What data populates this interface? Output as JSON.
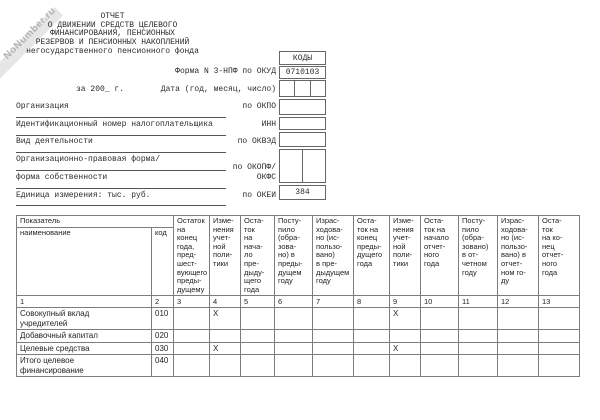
{
  "watermark": {
    "text": "NoNumber.ru"
  },
  "title": {
    "lines": [
      "ОТЧЕТ",
      "О ДВИЖЕНИИ СРЕДСТВ ЦЕЛЕВОГО",
      "ФИНАНСИРОВАНИЯ, ПЕНСИОННЫХ",
      "РЕЗЕРВОВ И ПЕНСИОННЫХ НАКОПЛЕНИЙ",
      "негосударственного пенсионного фонда"
    ]
  },
  "meta": {
    "form_label": "Форма N 3-НПФ по ОКУД",
    "period": "за 200_ г.",
    "date_label": "Дата (год, месяц, число)"
  },
  "codes": {
    "header": "КОДЫ",
    "okud": "0710103",
    "okei": "384"
  },
  "fields": {
    "organization": {
      "label": "Организация",
      "code": "по ОКПО"
    },
    "inn": {
      "label": "Идентификационный номер налогоплательщика",
      "code": "ИНН"
    },
    "activity": {
      "label": "Вид деятельности",
      "code": "по ОКВЭД"
    },
    "legal_form": {
      "label": "Организационно-правовая форма/",
      "label2": "форма собственности",
      "code": "по ОКОПФ/",
      "code2": "ОКФС"
    },
    "unit": {
      "label": "Единица измерения: тыс. руб.",
      "code": "по ОКЕИ"
    }
  },
  "table": {
    "group_header": "Показатель",
    "name_header": "наименование",
    "code_header": "код",
    "col_headers": [
      "Остаток\nна\nконец\nгода,\nпред-\nшест-\nвующего\nпреды-\nдущему",
      "Изме-\nнения\nучет-\nной\nполи-\nтики",
      "Оста-\nток\nна\nнача-\nло\nпре-\nдыду-\nщего\nгода",
      "Посту-\nпило\n(обра-\nзова-\nно) в\nпреды-\nдущем\nгоду",
      "Израс-\nходова-\nно (ис-\nпользо-\nвано)\nв пре-\nдыдущем\nгоду",
      "Оста-\nток на\nконец\nпреды-\nдущего\nгода",
      "Изме-\nнения\nучет-\nной\nполи-\nтики",
      "Оста-\nток на\nначало\nотчет-\nного\nгода",
      "Посту-\nпило\n(обра-\nзовано)\nв от-\nчетном\nгоду",
      "Израс-\nходова-\nно (ис-\nпользо-\nвано) в\nотчет-\nном го-\nду",
      "Оста-\nток\nна ко-\nнец\nотчет-\nного\nгода"
    ],
    "col_numbers": [
      "1",
      "2",
      "3",
      "4",
      "5",
      "6",
      "7",
      "8",
      "9",
      "10",
      "11",
      "12",
      "13"
    ],
    "rows": [
      {
        "name": "Совокупный вклад\nучредителей",
        "code": "010",
        "cells": [
          "",
          "X",
          "",
          "",
          "",
          "",
          "X",
          "",
          "",
          "",
          ""
        ]
      },
      {
        "name": "Добавочный капитал",
        "code": "020",
        "cells": [
          "",
          "",
          "",
          "",
          "",
          "",
          "",
          "",
          "",
          "",
          ""
        ]
      },
      {
        "name": "Целевые средства",
        "code": "030",
        "cells": [
          "",
          "X",
          "",
          "",
          "",
          "",
          "X",
          "",
          "",
          "",
          ""
        ]
      },
      {
        "name": "Итого целевое\nфинансирование",
        "code": "040",
        "cells": [
          "",
          "",
          "",
          "",
          "",
          "",
          "",
          "",
          "",
          "",
          ""
        ]
      }
    ]
  }
}
